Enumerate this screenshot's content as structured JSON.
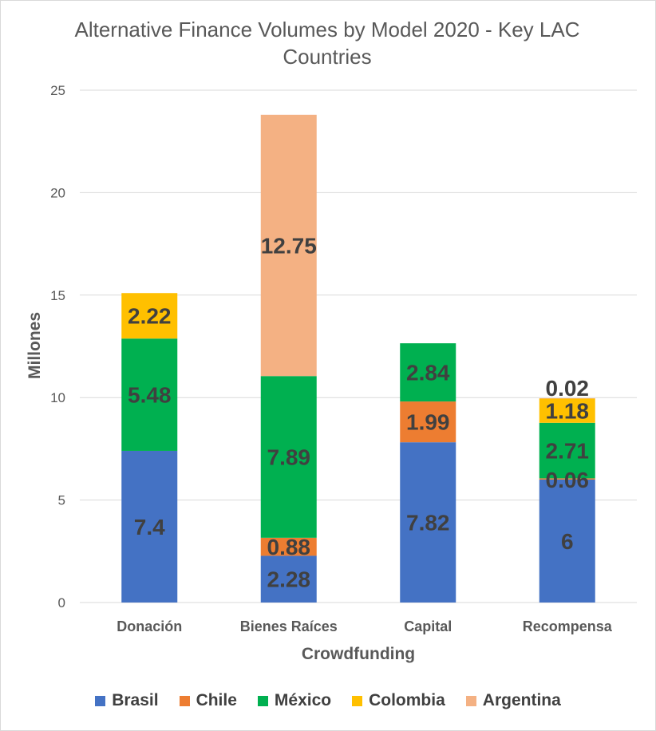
{
  "chart_data": {
    "type": "stacked-bar",
    "title_lines": [
      "Alternative Finance Volumes by Model 2020 - Key LAC",
      "Countries"
    ],
    "xlabel": "Crowdfunding",
    "ylabel": "Millones",
    "ylim": [
      0,
      25
    ],
    "yticks": [
      0,
      5,
      10,
      15,
      20,
      25
    ],
    "grid": true,
    "legend_position": "bottom",
    "categories": [
      "Donación",
      "Bienes Raíces",
      "Capital",
      "Recompensa"
    ],
    "series": [
      {
        "name": "Brasil",
        "color": "#4472c4",
        "values": [
          7.4,
          2.28,
          7.82,
          6
        ],
        "labels": [
          "7.4",
          "2.28",
          "7.82",
          "6"
        ]
      },
      {
        "name": "Chile",
        "color": "#ed7d31",
        "values": [
          0,
          0.88,
          1.99,
          0.06
        ],
        "labels": [
          "",
          "0.88",
          "1.99",
          "0.06"
        ]
      },
      {
        "name": "México",
        "color": "#00b050",
        "values": [
          5.48,
          7.89,
          2.84,
          2.71
        ],
        "labels": [
          "5.48",
          "7.89",
          "2.84",
          "2.71"
        ]
      },
      {
        "name": "Colombia",
        "color": "#ffc000",
        "values": [
          2.22,
          0,
          0,
          1.18
        ],
        "labels": [
          "2.22",
          "",
          "",
          "1.18"
        ]
      },
      {
        "name": "Argentina",
        "color": "#f4b183",
        "values": [
          0,
          12.75,
          0,
          0.02
        ],
        "labels": [
          "",
          "12.75",
          "",
          "0.02"
        ]
      }
    ]
  }
}
